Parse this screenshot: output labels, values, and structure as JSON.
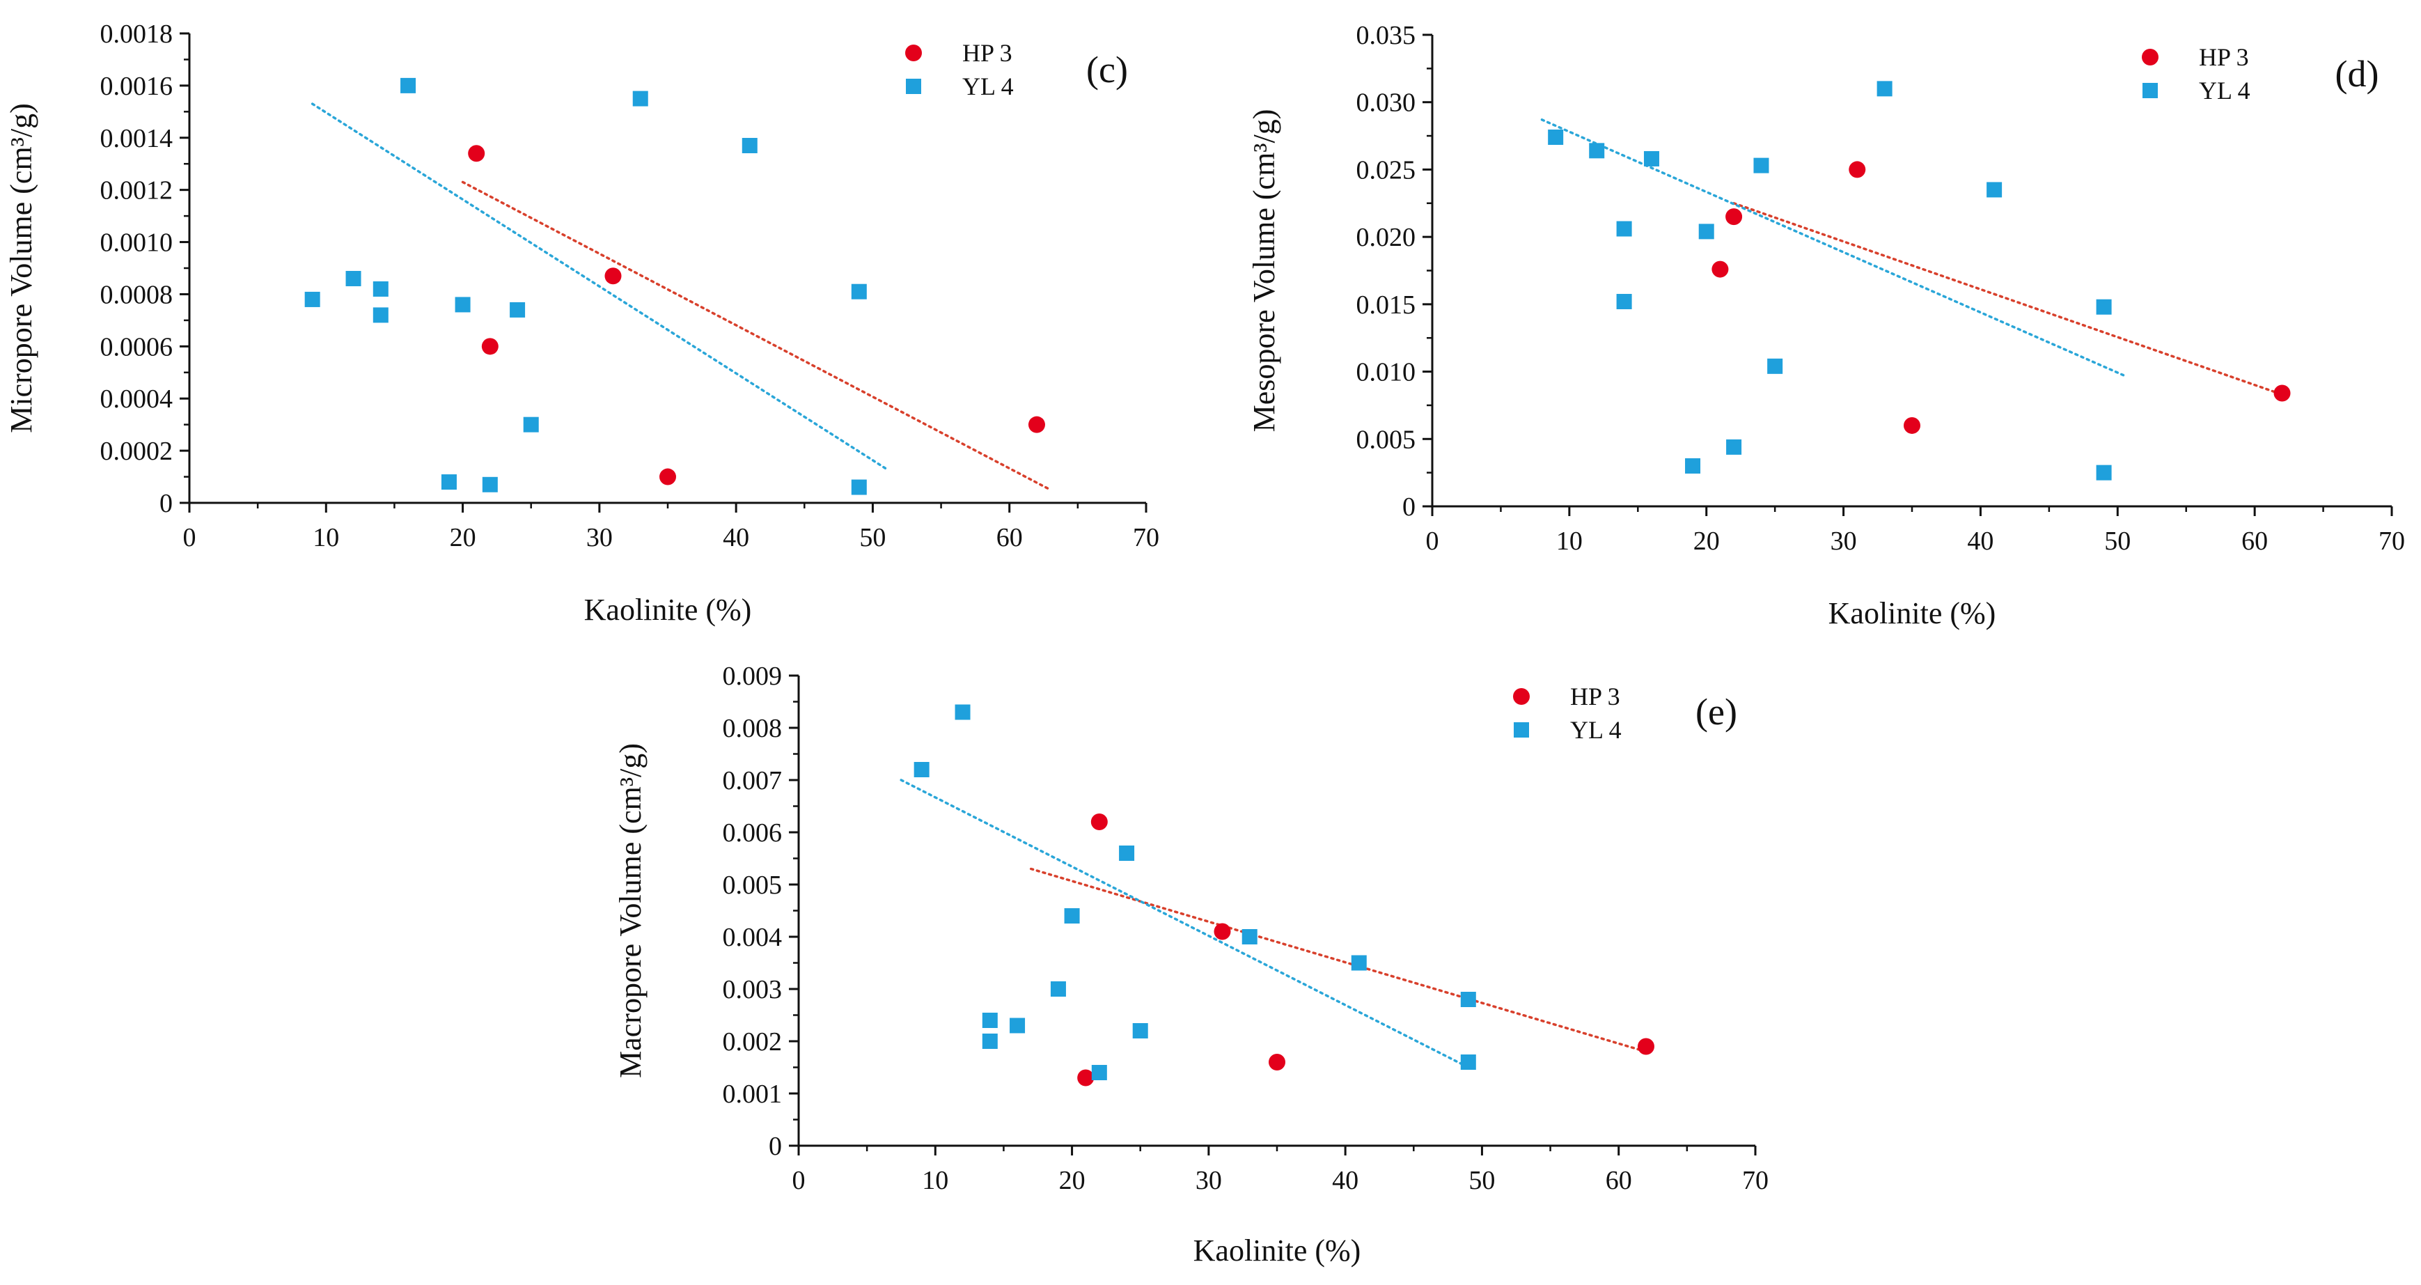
{
  "colors": {
    "hp3": "#e3001b",
    "yl4": "#1fa0dc",
    "hp3_trend": "#d8402c",
    "yl4_trend": "#2aa6d8",
    "axis": "#111111"
  },
  "chart_data": [
    {
      "type": "scatter",
      "panel_label": "(c)",
      "xlabel": "Kaolinite (%)",
      "ylabel": "Micropore Volume (cm³/g)",
      "xlim": [
        0,
        70
      ],
      "ylim": [
        0,
        0.0018
      ],
      "xticks": [
        0,
        10,
        20,
        30,
        40,
        50,
        60,
        70
      ],
      "xtick_labels": [
        "0",
        "10",
        "20",
        "30",
        "40",
        "50",
        "60",
        "70"
      ],
      "yticks": [
        0,
        0.0002,
        0.0004,
        0.0006,
        0.0008,
        0.001,
        0.0012,
        0.0014,
        0.0016,
        0.0018
      ],
      "ytick_labels": [
        "0",
        "0.0002",
        "0.0004",
        "0.0006",
        "0.0008",
        "0.0010",
        "0.0012",
        "0.0014",
        "0.0016",
        "0.0018"
      ],
      "grid": false,
      "legend_position": "top-right",
      "series": [
        {
          "name": "HP 3",
          "marker": "circle",
          "points": [
            [
              21,
              0.00134
            ],
            [
              31,
              0.00087
            ],
            [
              22,
              0.0006
            ],
            [
              62,
              0.0003
            ],
            [
              35,
              0.0001
            ]
          ],
          "trend": [
            [
              20,
              0.00123
            ],
            [
              63,
              5e-05
            ]
          ]
        },
        {
          "name": "YL 4",
          "marker": "square",
          "points": [
            [
              16,
              0.0016
            ],
            [
              33,
              0.00155
            ],
            [
              41,
              0.00137
            ],
            [
              9,
              0.00078
            ],
            [
              12,
              0.00086
            ],
            [
              14,
              0.00082
            ],
            [
              14,
              0.00072
            ],
            [
              20,
              0.00076
            ],
            [
              24,
              0.00074
            ],
            [
              49,
              0.00081
            ],
            [
              25,
              0.0003
            ],
            [
              19,
              8e-05
            ],
            [
              22,
              7e-05
            ],
            [
              49,
              6e-05
            ]
          ],
          "trend": [
            [
              9,
              0.00153
            ],
            [
              51,
              0.00013
            ]
          ]
        }
      ]
    },
    {
      "type": "scatter",
      "panel_label": "(d)",
      "xlabel": "Kaolinite (%)",
      "ylabel": "Mesopore Volume (cm³/g)",
      "xlim": [
        0,
        70
      ],
      "ylim": [
        0,
        0.035
      ],
      "xticks": [
        0,
        10,
        20,
        30,
        40,
        50,
        60,
        70
      ],
      "xtick_labels": [
        "0",
        "10",
        "20",
        "30",
        "40",
        "50",
        "60",
        "70"
      ],
      "yticks": [
        0,
        0.005,
        0.01,
        0.015,
        0.02,
        0.025,
        0.03,
        0.035
      ],
      "ytick_labels": [
        "0",
        "0.005",
        "0.010",
        "0.015",
        "0.020",
        "0.025",
        "0.030",
        "0.035"
      ],
      "grid": false,
      "legend_position": "top-right",
      "series": [
        {
          "name": "HP 3",
          "marker": "circle",
          "points": [
            [
              31,
              0.025
            ],
            [
              22,
              0.0215
            ],
            [
              21,
              0.0176
            ],
            [
              62,
              0.0084
            ],
            [
              35,
              0.006
            ]
          ],
          "trend": [
            [
              22,
              0.0225
            ],
            [
              62,
              0.0083
            ]
          ]
        },
        {
          "name": "YL 4",
          "marker": "square",
          "points": [
            [
              9,
              0.0274
            ],
            [
              12,
              0.0264
            ],
            [
              16,
              0.0258
            ],
            [
              33,
              0.031
            ],
            [
              24,
              0.0253
            ],
            [
              41,
              0.0235
            ],
            [
              14,
              0.0206
            ],
            [
              20,
              0.0204
            ],
            [
              14,
              0.0152
            ],
            [
              49,
              0.0148
            ],
            [
              25,
              0.0104
            ],
            [
              22,
              0.0044
            ],
            [
              19,
              0.003
            ],
            [
              49,
              0.0025
            ]
          ],
          "trend": [
            [
              8,
              0.0287
            ],
            [
              50.5,
              0.0097
            ]
          ]
        }
      ]
    },
    {
      "type": "scatter",
      "panel_label": "(e)",
      "xlabel": "Kaolinite (%)",
      "ylabel": "Macropore Volume (cm³/g)",
      "xlim": [
        0,
        70
      ],
      "ylim": [
        0,
        0.009
      ],
      "xticks": [
        0,
        10,
        20,
        30,
        40,
        50,
        60,
        70
      ],
      "xtick_labels": [
        "0",
        "10",
        "20",
        "30",
        "40",
        "50",
        "60",
        "70"
      ],
      "yticks": [
        0,
        0.001,
        0.002,
        0.003,
        0.004,
        0.005,
        0.006,
        0.007,
        0.008,
        0.009
      ],
      "ytick_labels": [
        "0",
        "0.001",
        "0.002",
        "0.003",
        "0.004",
        "0.005",
        "0.006",
        "0.007",
        "0.008",
        "0.009"
      ],
      "grid": false,
      "legend_position": "top-right",
      "series": [
        {
          "name": "HP 3",
          "marker": "circle",
          "points": [
            [
              22,
              0.0062
            ],
            [
              31,
              0.0041
            ],
            [
              35,
              0.0016
            ],
            [
              21,
              0.0013
            ],
            [
              62,
              0.0019
            ]
          ],
          "trend": [
            [
              17,
              0.0053
            ],
            [
              62,
              0.0018
            ]
          ]
        },
        {
          "name": "YL 4",
          "marker": "square",
          "points": [
            [
              12,
              0.0083
            ],
            [
              9,
              0.0072
            ],
            [
              24,
              0.0056
            ],
            [
              20,
              0.0044
            ],
            [
              33,
              0.004
            ],
            [
              41,
              0.0035
            ],
            [
              19,
              0.003
            ],
            [
              49,
              0.0028
            ],
            [
              14,
              0.0024
            ],
            [
              16,
              0.0023
            ],
            [
              14,
              0.002
            ],
            [
              25,
              0.0022
            ],
            [
              22,
              0.0014
            ],
            [
              49,
              0.0016
            ]
          ],
          "trend": [
            [
              7.5,
              0.007
            ],
            [
              49,
              0.0015
            ]
          ]
        }
      ]
    }
  ]
}
